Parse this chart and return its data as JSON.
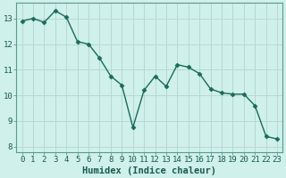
{
  "x": [
    0,
    1,
    2,
    3,
    4,
    5,
    6,
    7,
    8,
    9,
    10,
    11,
    12,
    13,
    14,
    15,
    16,
    17,
    18,
    19,
    20,
    21,
    22,
    23
  ],
  "y": [
    12.9,
    13.0,
    12.85,
    13.3,
    13.05,
    12.1,
    12.0,
    11.45,
    10.75,
    10.4,
    8.75,
    10.2,
    10.75,
    10.35,
    11.2,
    11.1,
    10.85,
    10.25,
    10.1,
    10.05,
    10.05,
    9.6,
    8.4,
    8.3
  ],
  "line_color": "#1a6b5a",
  "marker": "D",
  "marker_size": 2.5,
  "bg_color": "#cff0eb",
  "grid_color_major": "#b8d8d4",
  "grid_color_minor": "#daf0ed",
  "xlabel": "Humidex (Indice chaleur)",
  "xlim": [
    -0.5,
    23.5
  ],
  "ylim": [
    7.8,
    13.6
  ],
  "yticks": [
    8,
    9,
    10,
    11,
    12,
    13
  ],
  "xticks": [
    0,
    1,
    2,
    3,
    4,
    5,
    6,
    7,
    8,
    9,
    10,
    11,
    12,
    13,
    14,
    15,
    16,
    17,
    18,
    19,
    20,
    21,
    22,
    23
  ],
  "xlabel_fontsize": 7.5,
  "tick_fontsize": 6.5,
  "line_width": 1.0
}
